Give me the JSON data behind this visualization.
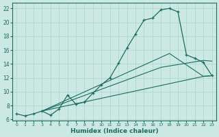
{
  "xlabel": "Humidex (Indice chaleur)",
  "bg_color": "#cce8e2",
  "grid_color": "#a8d5cc",
  "line_color": "#1a6b5e",
  "xlim": [
    -0.5,
    23.5
  ],
  "ylim": [
    5.8,
    22.8
  ],
  "yticks": [
    6,
    8,
    10,
    12,
    14,
    16,
    18,
    20,
    22
  ],
  "xticks": [
    0,
    1,
    2,
    3,
    4,
    5,
    6,
    7,
    8,
    9,
    10,
    11,
    12,
    13,
    14,
    15,
    16,
    17,
    18,
    19,
    20,
    21,
    22,
    23
  ],
  "curve_x": [
    0,
    1,
    2,
    3,
    4,
    5,
    6,
    7,
    8,
    9,
    10,
    11,
    12,
    13,
    14,
    15,
    16,
    17,
    18,
    19,
    20,
    21,
    22,
    23
  ],
  "curve_y": [
    6.8,
    6.5,
    6.8,
    7.2,
    6.6,
    7.5,
    9.5,
    8.2,
    8.5,
    9.8,
    11.0,
    12.0,
    14.1,
    16.3,
    18.3,
    20.3,
    20.6,
    21.8,
    22.0,
    21.5,
    15.3,
    14.8,
    14.2,
    12.3
  ],
  "straight_lines": [
    {
      "x": [
        3,
        22,
        23
      ],
      "y": [
        7.2,
        12.2,
        12.3
      ]
    },
    {
      "x": [
        3,
        17,
        22,
        23
      ],
      "y": [
        7.2,
        13.5,
        14.5,
        14.4
      ]
    },
    {
      "x": [
        3,
        18,
        22,
        23
      ],
      "y": [
        7.2,
        15.5,
        12.2,
        12.3
      ]
    }
  ]
}
